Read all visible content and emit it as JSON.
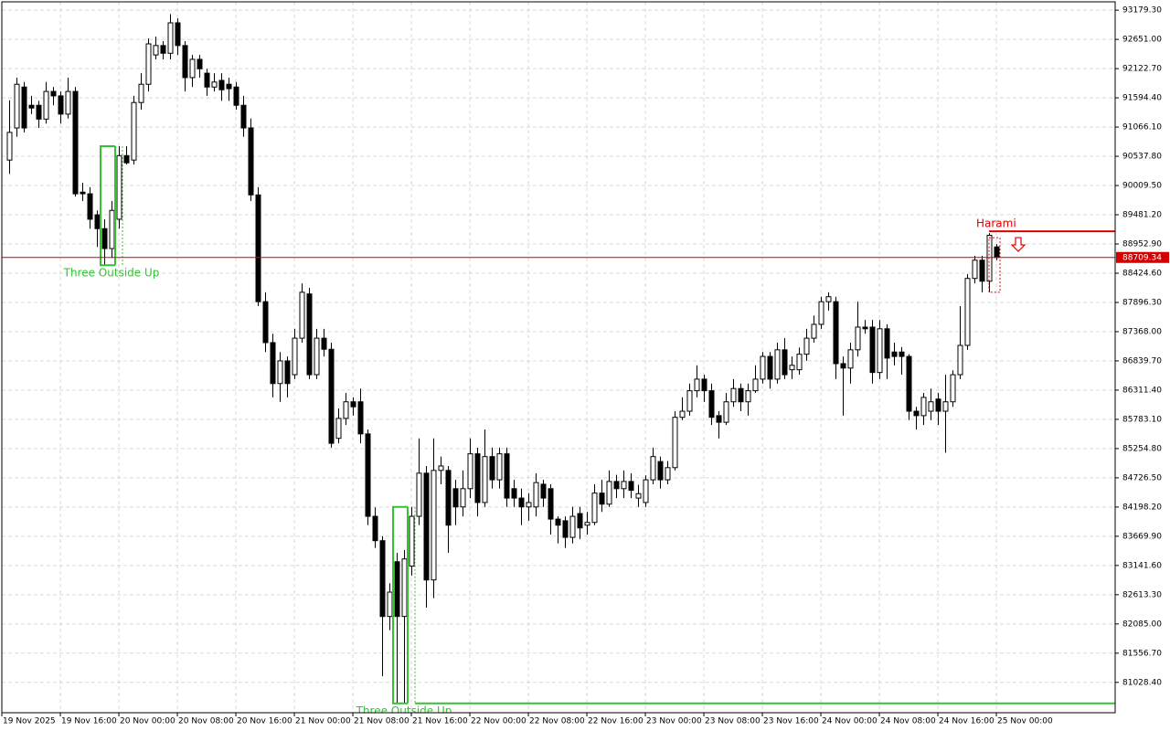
{
  "chart_data": {
    "type": "candlestick",
    "up_color": "#ffffff",
    "down_color": "#000000",
    "outline_color": "#000000",
    "grid": true,
    "xlim": [
      -1,
      151.25
    ],
    "xticks": [
      {
        "value": -1,
        "label": "19 Nov 2025"
      },
      {
        "value": 7,
        "label": "19 Nov 16:00"
      },
      {
        "value": 15,
        "label": "20 Nov 00:00"
      },
      {
        "value": 23,
        "label": "20 Nov 08:00"
      },
      {
        "value": 31,
        "label": "20 Nov 16:00"
      },
      {
        "value": 39,
        "label": "21 Nov 00:00"
      },
      {
        "value": 47,
        "label": "21 Nov 08:00"
      },
      {
        "value": 55,
        "label": "21 Nov 16:00"
      },
      {
        "value": 63,
        "label": "22 Nov 00:00"
      },
      {
        "value": 71,
        "label": "22 Nov 08:00"
      },
      {
        "value": 79,
        "label": "22 Nov 16:00"
      },
      {
        "value": 87,
        "label": "23 Nov 00:00"
      },
      {
        "value": 95,
        "label": "23 Nov 08:00"
      },
      {
        "value": 103,
        "label": "23 Nov 16:00"
      },
      {
        "value": 111,
        "label": "24 Nov 00:00"
      },
      {
        "value": 119,
        "label": "24 Nov 08:00"
      },
      {
        "value": 127,
        "label": "24 Nov 16:00"
      },
      {
        "value": 135,
        "label": "25 Nov 00:00"
      }
    ],
    "ylim": [
      80480,
      93330
    ],
    "yticks": [
      {
        "value": 93179.3,
        "label": "93179.30"
      },
      {
        "value": 92651,
        "label": "92651.00"
      },
      {
        "value": 92122.7,
        "label": "92122.70"
      },
      {
        "value": 91594.4,
        "label": "91594.40"
      },
      {
        "value": 91066.1,
        "label": "91066.10"
      },
      {
        "value": 90537.8,
        "label": "90537.80"
      },
      {
        "value": 90009.5,
        "label": "90009.50"
      },
      {
        "value": 89481.2,
        "label": "89481.20"
      },
      {
        "value": 88952.9,
        "label": "88952.90"
      },
      {
        "value": 88424.6,
        "label": "88424.60"
      },
      {
        "value": 87896.3,
        "label": "87896.30"
      },
      {
        "value": 87368,
        "label": "87368.00"
      },
      {
        "value": 86839.7,
        "label": "86839.70"
      },
      {
        "value": 86311.4,
        "label": "86311.40"
      },
      {
        "value": 85783.1,
        "label": "85783.10"
      },
      {
        "value": 85254.8,
        "label": "85254.80"
      },
      {
        "value": 84726.5,
        "label": "84726.50"
      },
      {
        "value": 84198.2,
        "label": "84198.20"
      },
      {
        "value": 83669.9,
        "label": "83669.90"
      },
      {
        "value": 83141.6,
        "label": "83141.60"
      },
      {
        "value": 82613.3,
        "label": "82613.30"
      },
      {
        "value": 82085,
        "label": "82085.00"
      },
      {
        "value": 81556.7,
        "label": "81556.70"
      },
      {
        "value": 81028.4,
        "label": "81028.40"
      }
    ],
    "price_line": {
      "value": 88709.34,
      "color": "#d40000"
    },
    "annotations": [
      {
        "text": "Three Outside Up",
        "color": "#33c233"
      },
      {
        "text": "Three Outside Up",
        "color": "#33c233"
      },
      {
        "text": "Harami",
        "color": "#e00000"
      }
    ],
    "open": [
      90470,
      91050,
      91790,
      91460,
      91460,
      91210,
      91710,
      91630,
      91300,
      91710,
      89890,
      89860,
      89480,
      89230,
      88870,
      89400,
      90550,
      90470,
      91510,
      91840,
      92370,
      92540,
      92400,
      92950,
      92540,
      91960,
      92290,
      92040,
      91790,
      91910,
      91840,
      91790,
      91460,
      91050,
      89840,
      87910,
      87170,
      86430,
      86840,
      86590,
      87250,
      88050,
      86590,
      87250,
      87050,
      85440,
      85800,
      86100,
      86100,
      85520,
      84030,
      83590,
      82220,
      83210,
      82220,
      83130,
      84030,
      84810,
      82880,
      84860,
      84860,
      84530,
      84200,
      84530,
      85160,
      84280,
      85110,
      84690,
      85160,
      84530,
      84360,
      84200,
      84200,
      84610,
      84530,
      83980,
      83950,
      83650,
      84080,
      83870,
      83920,
      84450,
      84250,
      84660,
      84530,
      84660,
      84360,
      84280,
      84690,
      85020,
      84690,
      84910,
      85820,
      85930,
      86300,
      86510,
      86300,
      85850,
      85730,
      86100,
      86340,
      86100,
      86300,
      86510,
      86920,
      86510,
      87040,
      86680,
      86680,
      86960,
      87250,
      87500,
      87910,
      87910,
      86790,
      86710,
      87040,
      87450,
      87450,
      86630,
      87420,
      87000,
      87000,
      86920,
      85930,
      85850,
      85930,
      86150,
      85930,
      86100,
      86590,
      87120,
      88330,
      88660,
      88280,
      88900
    ],
    "high": [
      91550,
      91960,
      91880,
      91630,
      91540,
      91880,
      91790,
      91710,
      91960,
      91790,
      90060,
      89980,
      89560,
      89400,
      89730,
      90720,
      90720,
      91630,
      92040,
      92670,
      92700,
      92620,
      93110,
      93030,
      92620,
      92370,
      92370,
      92120,
      92040,
      92040,
      91960,
      91880,
      91630,
      91220,
      89980,
      88080,
      87330,
      87000,
      86920,
      87420,
      88240,
      88160,
      87420,
      87420,
      87170,
      85980,
      86260,
      86180,
      86340,
      85600,
      84190,
      83670,
      82820,
      83370,
      83420,
      84200,
      85440,
      84940,
      85440,
      85110,
      84940,
      84690,
      84860,
      85440,
      85270,
      85600,
      85270,
      85270,
      85270,
      84690,
      84530,
      84450,
      84810,
      84690,
      84610,
      84030,
      84030,
      84200,
      84200,
      84110,
      84610,
      84690,
      84860,
      84780,
      84860,
      84810,
      84600,
      84770,
      85270,
      85110,
      85030,
      85930,
      86180,
      86430,
      86760,
      86590,
      86430,
      85930,
      86260,
      86510,
      86430,
      86430,
      86760,
      87000,
      87000,
      87170,
      87250,
      86920,
      87080,
      87420,
      87660,
      88000,
      88080,
      88000,
      86920,
      87170,
      87910,
      87580,
      87580,
      87580,
      87500,
      87170,
      87090,
      86960,
      86010,
      86260,
      86340,
      86260,
      86590,
      86670,
      87830,
      88410,
      88740,
      88740,
      89150,
      88950
    ],
    "low": [
      90220,
      90890,
      90970,
      91300,
      91050,
      91130,
      91460,
      91130,
      91220,
      89810,
      89730,
      89230,
      88900,
      88570,
      88700,
      89230,
      90390,
      90390,
      91380,
      91710,
      92290,
      92290,
      92290,
      92370,
      91710,
      91790,
      91960,
      91630,
      91710,
      91540,
      91540,
      91380,
      90890,
      89730,
      87830,
      87000,
      86180,
      86100,
      86180,
      86510,
      87170,
      86510,
      86510,
      86920,
      85270,
      85350,
      85680,
      85850,
      85350,
      83870,
      83460,
      81140,
      81970,
      80650,
      80650,
      82960,
      83870,
      82380,
      82550,
      84610,
      83370,
      83870,
      84030,
      84360,
      84030,
      84200,
      84530,
      84530,
      84200,
      84200,
      83870,
      83950,
      84030,
      84200,
      83700,
      83540,
      83460,
      83540,
      83620,
      83700,
      83870,
      84110,
      84200,
      84360,
      84360,
      84360,
      84200,
      84200,
      84610,
      84530,
      84610,
      84860,
      85770,
      85850,
      86180,
      86100,
      85680,
      85440,
      85680,
      86010,
      85930,
      85850,
      86260,
      86430,
      86340,
      86430,
      86510,
      86510,
      86590,
      86840,
      87170,
      87420,
      87750,
      86510,
      85850,
      86430,
      86920,
      87330,
      86430,
      86510,
      86510,
      86760,
      86590,
      85770,
      85600,
      85680,
      85770,
      85680,
      85180,
      86010,
      86510,
      87040,
      88240,
      88080,
      88080,
      88660
    ],
    "close": [
      90970,
      91840,
      91050,
      91410,
      91210,
      91710,
      91630,
      91300,
      91710,
      89860,
      89860,
      89400,
      89230,
      88870,
      89560,
      90550,
      90420,
      91510,
      91840,
      92570,
      92540,
      92400,
      92950,
      92540,
      91960,
      92290,
      92120,
      91790,
      91880,
      91740,
      91760,
      91460,
      91050,
      89840,
      87910,
      87170,
      86430,
      86840,
      86430,
      87250,
      88080,
      86590,
      87250,
      87050,
      85350,
      85800,
      86100,
      86010,
      85520,
      84030,
      83590,
      82220,
      82660,
      82220,
      83260,
      84030,
      84810,
      82880,
      84860,
      84940,
      83870,
      84200,
      84530,
      85160,
      84280,
      85110,
      84690,
      85160,
      84360,
      84360,
      84200,
      84280,
      84640,
      84360,
      83980,
      83870,
      83650,
      84030,
      83820,
      83920,
      84450,
      84250,
      84660,
      84530,
      84660,
      84500,
      84440,
      84690,
      85110,
      84690,
      84910,
      85820,
      85930,
      86300,
      86510,
      86300,
      85820,
      85730,
      86100,
      86340,
      86100,
      86300,
      86510,
      86920,
      86510,
      87040,
      86590,
      86760,
      86960,
      87250,
      87500,
      87910,
      88000,
      86790,
      86710,
      87040,
      87450,
      87420,
      86630,
      87420,
      86890,
      86920,
      86920,
      85930,
      85850,
      86180,
      86100,
      85930,
      86100,
      86590,
      87120,
      88330,
      88660,
      88280,
      89110,
      88710
    ]
  }
}
